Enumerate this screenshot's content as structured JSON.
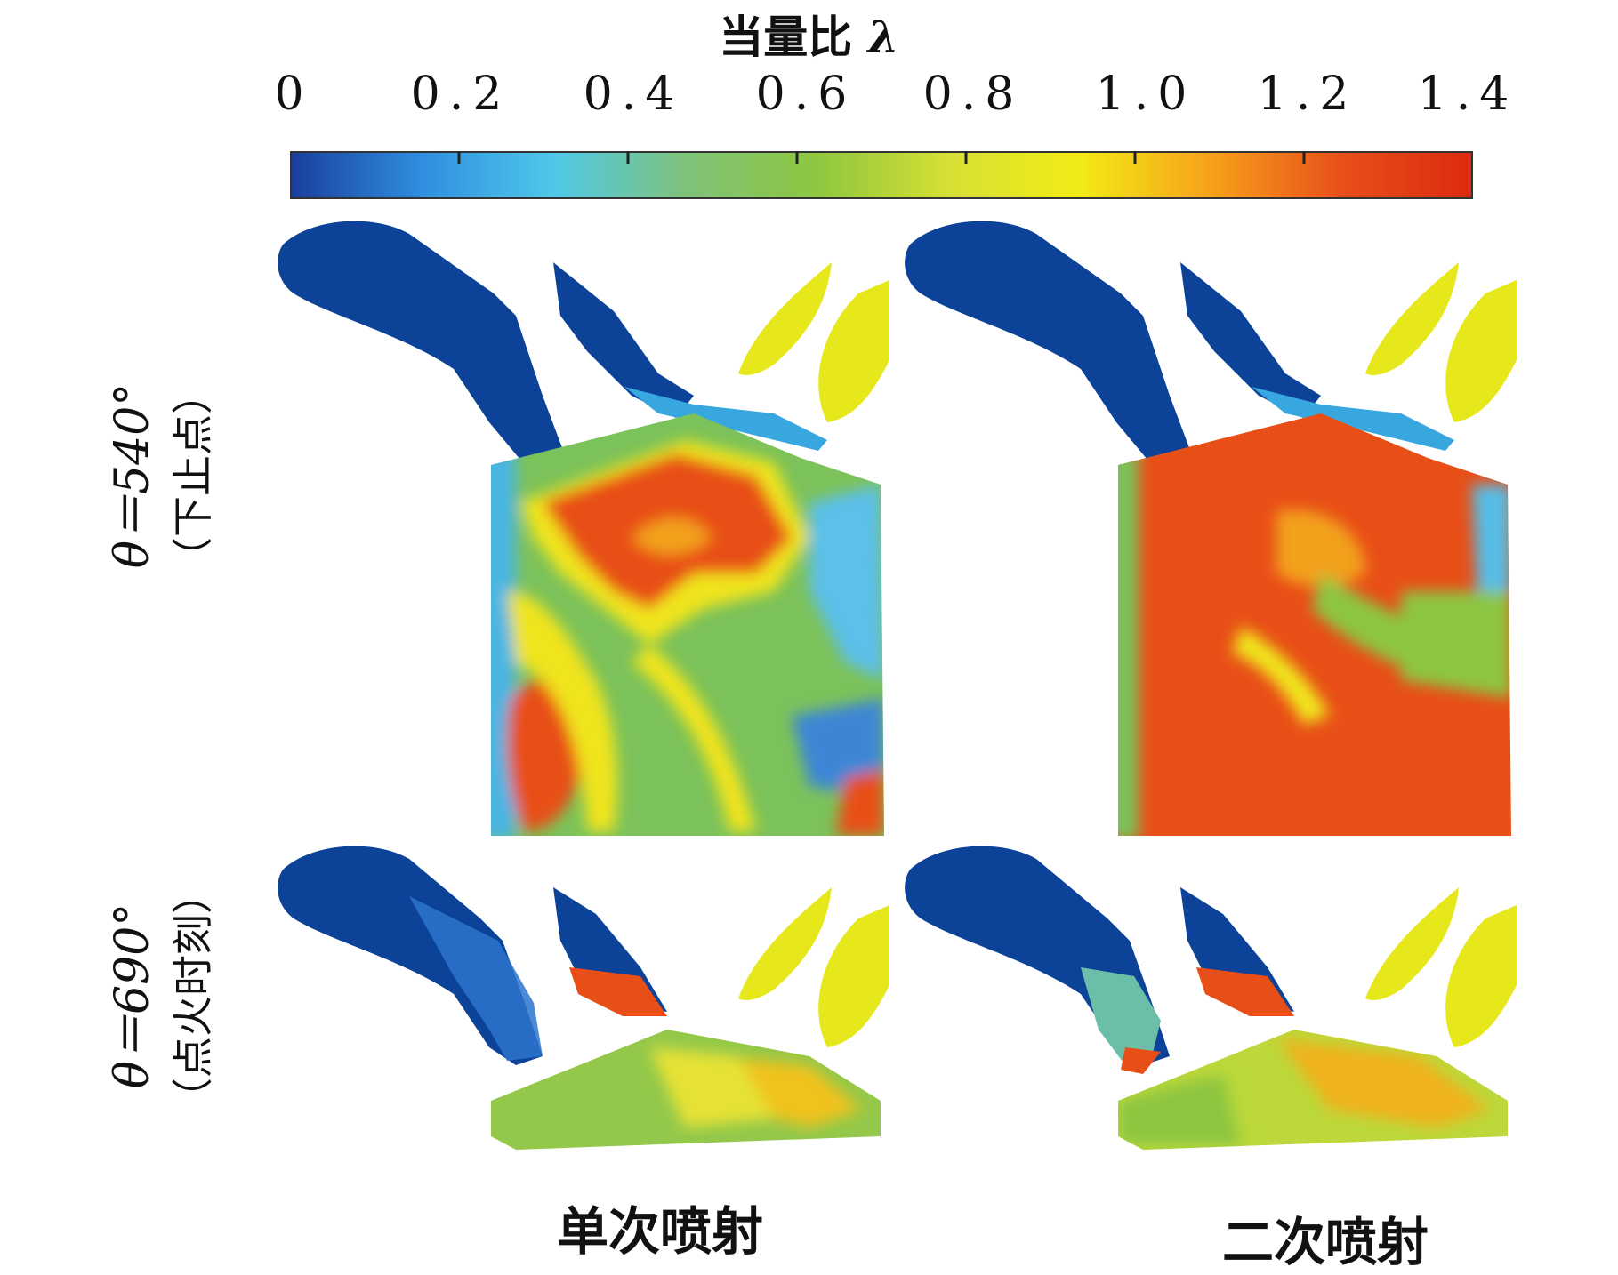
{
  "colorbar": {
    "title": "当量比",
    "symbol": "λ",
    "range": [
      0,
      1.4
    ],
    "ticks": [
      "0",
      "0.2",
      "0.4",
      "0.6",
      "0.8",
      "1.0",
      "1.2",
      "1.4"
    ],
    "colormap": [
      "#1a3f9e",
      "#2f8fe0",
      "#4fc8e8",
      "#7ec27a",
      "#8dc63f",
      "#d6e035",
      "#f2ec16",
      "#f7a21a",
      "#e8501a",
      "#dd2a10"
    ]
  },
  "rows": [
    {
      "label": "θ＝540°",
      "sub": "（下止点）"
    },
    {
      "label": "θ＝690°",
      "sub": "（点火时刻）"
    }
  ],
  "columns": [
    {
      "label": "单次喷射"
    },
    {
      "label": "二次喷射"
    }
  ]
}
